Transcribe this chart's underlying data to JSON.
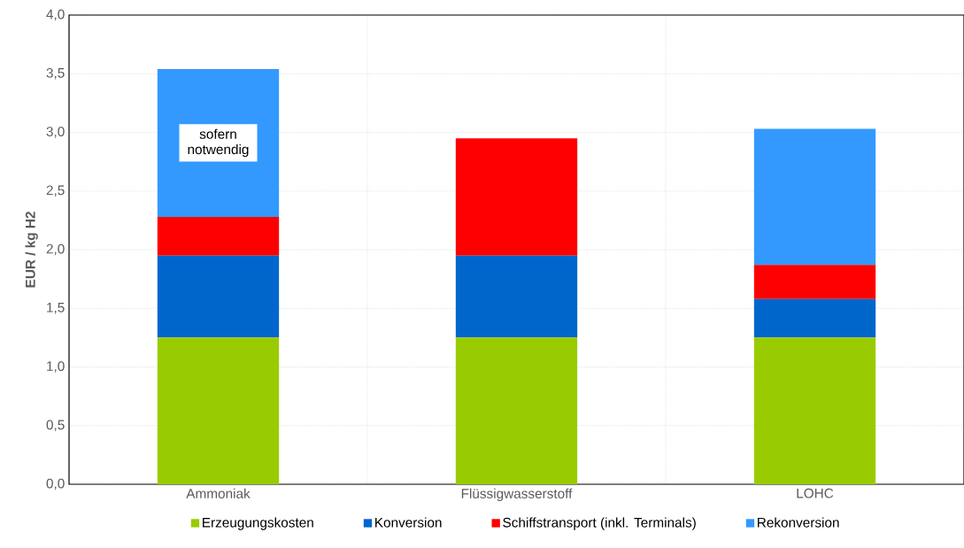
{
  "chart_data": {
    "type": "bar",
    "stacked": true,
    "ylabel": "EUR / kg H2",
    "categories": [
      "Ammoniak",
      "Flüssigwasserstoff",
      "LOHC"
    ],
    "series": [
      {
        "name": "Erzeugungskosten",
        "color": "#99cc00",
        "values": [
          1.25,
          1.25,
          1.25
        ]
      },
      {
        "name": "Konversion",
        "color": "#0066cc",
        "values": [
          0.7,
          0.7,
          0.33
        ]
      },
      {
        "name": "Schiffstransport (inkl. Terminals)",
        "color": "#ff0000",
        "values": [
          0.33,
          1.0,
          0.29
        ]
      },
      {
        "name": "Rekonversion",
        "color": "#3399ff",
        "values": [
          1.26,
          0,
          1.16
        ]
      }
    ],
    "ylim": [
      0,
      4
    ],
    "yticks": [
      {
        "value": 0,
        "label": "0,0"
      },
      {
        "value": 0.5,
        "label": "0,5"
      },
      {
        "value": 1,
        "label": "1,0"
      },
      {
        "value": 1.5,
        "label": "1,5"
      },
      {
        "value": 2,
        "label": "2,0"
      },
      {
        "value": 2.5,
        "label": "2,5"
      },
      {
        "value": 3,
        "label": "3,0"
      },
      {
        "value": 3.5,
        "label": "3,5"
      },
      {
        "value": 4,
        "label": "4,0"
      }
    ],
    "grid": true,
    "legend": "bottom",
    "annotations": [
      "sofern notwendig"
    ]
  }
}
